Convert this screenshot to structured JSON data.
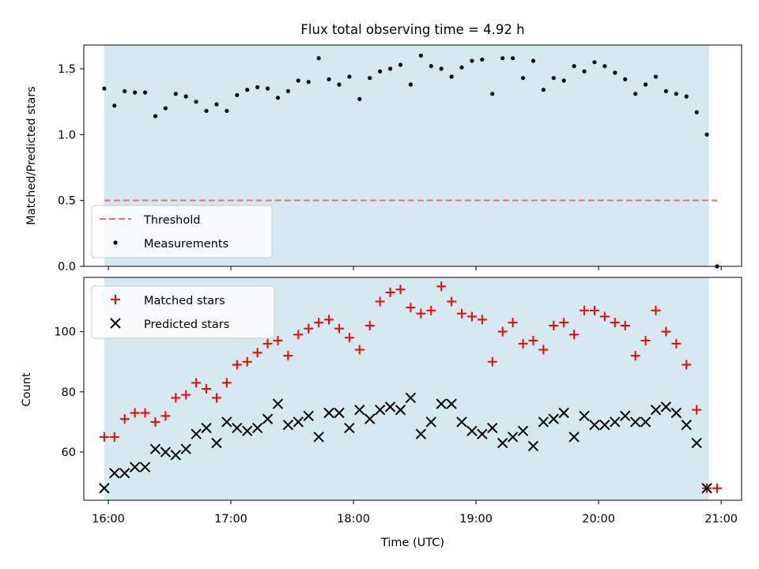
{
  "title": "Flux total observing time = 4.92 h",
  "xlabel": "Time (UTC)",
  "xticks": [
    "16:00",
    "17:00",
    "18:00",
    "19:00",
    "20:00",
    "21:00"
  ],
  "colors": {
    "shade": "#d4eaf0",
    "threshold": "#f07070",
    "matched": "#ff0000",
    "predicted": "#000000"
  },
  "chart_data": [
    {
      "type": "scatter",
      "panel": "top",
      "ylabel": "Matched/Predicted stars",
      "ylim": [
        0,
        1.68
      ],
      "yticks": [
        "0.0",
        "0.5",
        "1.0",
        "1.5"
      ],
      "xlim": [
        "15:48",
        "21:10"
      ],
      "observing_window": [
        "15:58",
        "20:54"
      ],
      "threshold": 0.5,
      "legend": {
        "placement": "lower-left",
        "entries": [
          "Threshold",
          "Measurements"
        ]
      },
      "series": [
        {
          "name": "Measurements",
          "x": [
            "15:58",
            "16:03",
            "16:08",
            "16:13",
            "16:18",
            "16:23",
            "16:28",
            "16:33",
            "16:38",
            "16:43",
            "16:48",
            "16:53",
            "16:58",
            "17:03",
            "17:08",
            "17:13",
            "17:18",
            "17:23",
            "17:28",
            "17:33",
            "17:38",
            "17:43",
            "17:48",
            "17:53",
            "17:58",
            "18:03",
            "18:08",
            "18:13",
            "18:18",
            "18:23",
            "18:28",
            "18:33",
            "18:38",
            "18:43",
            "18:48",
            "18:53",
            "18:58",
            "19:03",
            "19:08",
            "19:13",
            "19:18",
            "19:23",
            "19:28",
            "19:33",
            "19:38",
            "19:43",
            "19:48",
            "19:53",
            "19:58",
            "20:03",
            "20:08",
            "20:13",
            "20:18",
            "20:23",
            "20:28",
            "20:33",
            "20:38",
            "20:43",
            "20:48",
            "20:53",
            "20:58"
          ],
          "values": [
            1.35,
            1.22,
            1.33,
            1.32,
            1.32,
            1.14,
            1.2,
            1.31,
            1.29,
            1.25,
            1.18,
            1.23,
            1.18,
            1.3,
            1.34,
            1.36,
            1.35,
            1.28,
            1.33,
            1.41,
            1.4,
            1.58,
            1.42,
            1.38,
            1.44,
            1.27,
            1.43,
            1.48,
            1.5,
            1.53,
            1.38,
            1.6,
            1.52,
            1.5,
            1.44,
            1.51,
            1.56,
            1.57,
            1.31,
            1.58,
            1.58,
            1.43,
            1.56,
            1.34,
            1.43,
            1.41,
            1.52,
            1.48,
            1.55,
            1.52,
            1.47,
            1.42,
            1.31,
            1.38,
            1.44,
            1.33,
            1.31,
            1.29,
            1.17,
            1.0,
            0.0
          ]
        }
      ]
    },
    {
      "type": "scatter",
      "panel": "bottom",
      "ylabel": "Count",
      "ylim": [
        44,
        118
      ],
      "yticks": [
        "60",
        "80",
        "100"
      ],
      "xlim": [
        "15:48",
        "21:10"
      ],
      "observing_window": [
        "15:58",
        "20:54"
      ],
      "legend": {
        "placement": "upper-left",
        "entries": [
          "Matched stars",
          "Predicted stars"
        ]
      },
      "series": [
        {
          "name": "Matched stars",
          "x": [
            "15:58",
            "16:03",
            "16:08",
            "16:13",
            "16:18",
            "16:23",
            "16:28",
            "16:33",
            "16:38",
            "16:43",
            "16:48",
            "16:53",
            "16:58",
            "17:03",
            "17:08",
            "17:13",
            "17:18",
            "17:23",
            "17:28",
            "17:33",
            "17:38",
            "17:43",
            "17:48",
            "17:53",
            "17:58",
            "18:03",
            "18:08",
            "18:13",
            "18:18",
            "18:23",
            "18:28",
            "18:33",
            "18:38",
            "18:43",
            "18:48",
            "18:53",
            "18:58",
            "19:03",
            "19:08",
            "19:13",
            "19:18",
            "19:23",
            "19:28",
            "19:33",
            "19:38",
            "19:43",
            "19:48",
            "19:53",
            "19:58",
            "20:03",
            "20:08",
            "20:13",
            "20:18",
            "20:23",
            "20:28",
            "20:33",
            "20:38",
            "20:43",
            "20:48",
            "20:53",
            "20:58"
          ],
          "values": [
            65,
            65,
            71,
            73,
            73,
            70,
            72,
            78,
            79,
            83,
            81,
            78,
            83,
            89,
            90,
            93,
            96,
            97,
            92,
            99,
            101,
            103,
            104,
            101,
            98,
            94,
            102,
            110,
            113,
            114,
            108,
            106,
            107,
            115,
            110,
            106,
            105,
            104,
            90,
            100,
            103,
            96,
            97,
            94,
            102,
            103,
            99,
            107,
            107,
            105,
            103,
            102,
            92,
            97,
            107,
            100,
            96,
            89,
            74,
            48,
            48
          ]
        },
        {
          "name": "Predicted stars",
          "x": [
            "15:58",
            "16:03",
            "16:08",
            "16:13",
            "16:18",
            "16:23",
            "16:28",
            "16:33",
            "16:38",
            "16:43",
            "16:48",
            "16:53",
            "16:58",
            "17:03",
            "17:08",
            "17:13",
            "17:18",
            "17:23",
            "17:28",
            "17:33",
            "17:38",
            "17:43",
            "17:48",
            "17:53",
            "17:58",
            "18:03",
            "18:08",
            "18:13",
            "18:18",
            "18:23",
            "18:28",
            "18:33",
            "18:38",
            "18:43",
            "18:48",
            "18:53",
            "18:58",
            "19:03",
            "19:08",
            "19:13",
            "19:18",
            "19:23",
            "19:28",
            "19:33",
            "19:38",
            "19:43",
            "19:48",
            "19:53",
            "19:58",
            "20:03",
            "20:08",
            "20:13",
            "20:18",
            "20:23",
            "20:28",
            "20:33",
            "20:38",
            "20:43",
            "20:48",
            "20:53"
          ],
          "values": [
            48,
            53,
            53,
            55,
            55,
            61,
            60,
            59,
            61,
            66,
            68,
            63,
            70,
            68,
            67,
            68,
            71,
            76,
            69,
            70,
            72,
            65,
            73,
            73,
            68,
            74,
            71,
            74,
            75,
            74,
            78,
            66,
            70,
            76,
            76,
            70,
            67,
            66,
            68,
            63,
            65,
            67,
            62,
            70,
            71,
            73,
            65,
            72,
            69,
            69,
            70,
            72,
            70,
            70,
            74,
            75,
            73,
            69,
            63,
            48
          ]
        }
      ]
    }
  ]
}
